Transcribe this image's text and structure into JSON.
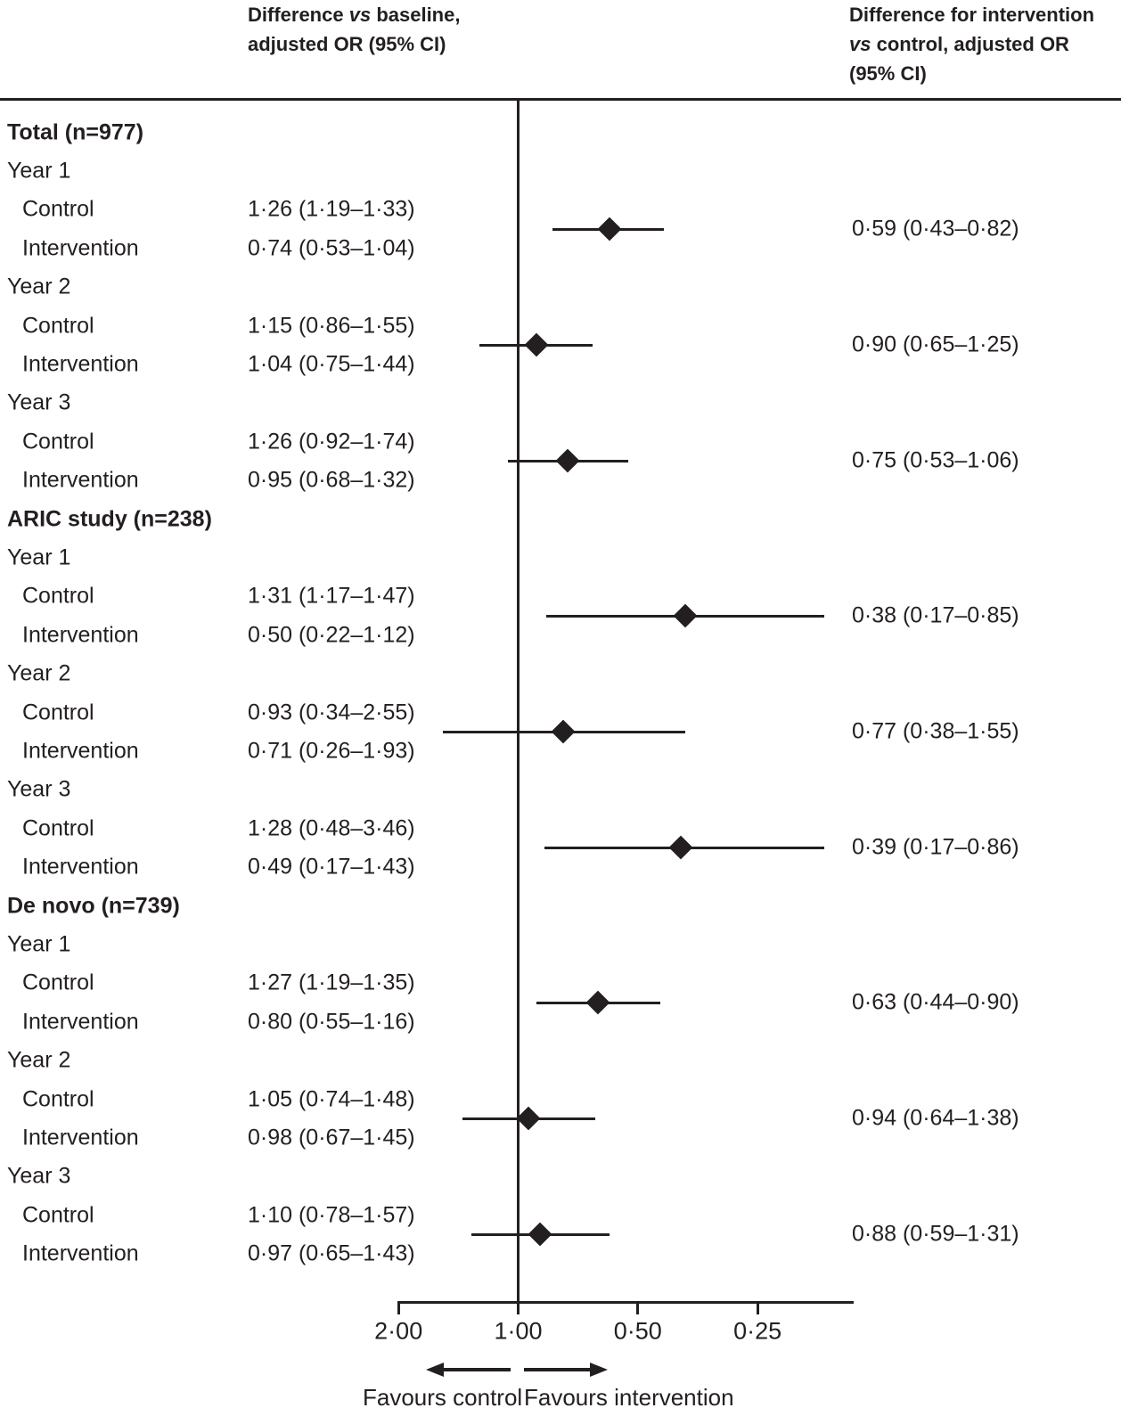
{
  "figure_ink_color": "#231f20",
  "headers": {
    "baseline_col": {
      "line1_pre": "Difference ",
      "vs_italic": "vs",
      "line1_post": " baseline,",
      "line2": "adjusted OR (95% CI)"
    },
    "intervention_col": {
      "line1": "Difference for intervention",
      "vs_italic": "vs",
      "line2_post": " control, adjusted OR",
      "line3": "(95% CI)"
    }
  },
  "chart_data": {
    "type": "forest",
    "x_axis": {
      "scale": "log2",
      "direction": "reversed_higher_on_left",
      "tick_values": [
        2.0,
        1.0,
        0.5,
        0.25
      ],
      "tick_labels": [
        "2·00",
        "1·00",
        "0·50",
        "0·25"
      ],
      "reference_value": 1.0,
      "displayed_range_left_to_right": [
        2.0,
        0.14
      ],
      "grid": false
    },
    "footer": {
      "favours_left": "Favours control",
      "favours_right": "Favours intervention"
    },
    "groups": [
      {
        "label": "Total (n=977)",
        "years": [
          {
            "label": "Year 1",
            "arms": [
              {
                "label": "Control",
                "text": "1·26 (1·19–1·33)",
                "or": 1.26,
                "lo": 1.19,
                "hi": 1.33
              },
              {
                "label": "Intervention",
                "text": "0·74 (0·53–1·04)",
                "or": 0.74,
                "lo": 0.53,
                "hi": 1.04
              }
            ],
            "diff": {
              "text": "0·59 (0·43–0·82)",
              "or": 0.59,
              "lo": 0.43,
              "hi": 0.82
            }
          },
          {
            "label": "Year 2",
            "arms": [
              {
                "label": "Control",
                "text": "1·15 (0·86–1·55)",
                "or": 1.15,
                "lo": 0.86,
                "hi": 1.55
              },
              {
                "label": "Intervention",
                "text": "1·04 (0·75–1·44)",
                "or": 1.04,
                "lo": 0.75,
                "hi": 1.44
              }
            ],
            "diff": {
              "text": "0·90 (0·65–1·25)",
              "or": 0.9,
              "lo": 0.65,
              "hi": 1.25
            }
          },
          {
            "label": "Year 3",
            "arms": [
              {
                "label": "Control",
                "text": "1·26 (0·92–1·74)",
                "or": 1.26,
                "lo": 0.92,
                "hi": 1.74
              },
              {
                "label": "Intervention",
                "text": "0·95 (0·68–1·32)",
                "or": 0.95,
                "lo": 0.68,
                "hi": 1.32
              }
            ],
            "diff": {
              "text": "0·75 (0·53–1·06)",
              "or": 0.75,
              "lo": 0.53,
              "hi": 1.06
            }
          }
        ]
      },
      {
        "label": "ARIC study (n=238)",
        "years": [
          {
            "label": "Year 1",
            "arms": [
              {
                "label": "Control",
                "text": "1·31 (1·17–1·47)",
                "or": 1.31,
                "lo": 1.17,
                "hi": 1.47
              },
              {
                "label": "Intervention",
                "text": "0·50 (0·22–1·12)",
                "or": 0.5,
                "lo": 0.22,
                "hi": 1.12
              }
            ],
            "diff": {
              "text": "0·38 (0·17–0·85)",
              "or": 0.38,
              "lo": 0.17,
              "hi": 0.85
            }
          },
          {
            "label": "Year 2",
            "arms": [
              {
                "label": "Control",
                "text": "0·93 (0·34–2·55)",
                "or": 0.93,
                "lo": 0.34,
                "hi": 2.55
              },
              {
                "label": "Intervention",
                "text": "0·71 (0·26–1·93)",
                "or": 0.71,
                "lo": 0.26,
                "hi": 1.93
              }
            ],
            "diff": {
              "text": "0·77 (0·38–1·55)",
              "or": 0.77,
              "lo": 0.38,
              "hi": 1.55
            }
          },
          {
            "label": "Year 3",
            "arms": [
              {
                "label": "Control",
                "text": "1·28 (0·48–3·46)",
                "or": 1.28,
                "lo": 0.48,
                "hi": 3.46
              },
              {
                "label": "Intervention",
                "text": "0·49 (0·17–1·43)",
                "or": 0.49,
                "lo": 0.17,
                "hi": 1.43
              }
            ],
            "diff": {
              "text": "0·39 (0·17–0·86)",
              "or": 0.39,
              "lo": 0.17,
              "hi": 0.86
            }
          }
        ]
      },
      {
        "label": "De novo (n=739)",
        "years": [
          {
            "label": "Year 1",
            "arms": [
              {
                "label": "Control",
                "text": "1·27 (1·19–1·35)",
                "or": 1.27,
                "lo": 1.19,
                "hi": 1.35
              },
              {
                "label": "Intervention",
                "text": "0·80 (0·55–1·16)",
                "or": 0.8,
                "lo": 0.55,
                "hi": 1.16
              }
            ],
            "diff": {
              "text": "0·63 (0·44–0·90)",
              "or": 0.63,
              "lo": 0.44,
              "hi": 0.9
            }
          },
          {
            "label": "Year 2",
            "arms": [
              {
                "label": "Control",
                "text": "1·05 (0·74–1·48)",
                "or": 1.05,
                "lo": 0.74,
                "hi": 1.48
              },
              {
                "label": "Intervention",
                "text": "0·98 (0·67–1·45)",
                "or": 0.98,
                "lo": 0.67,
                "hi": 1.45
              }
            ],
            "diff": {
              "text": "0·94 (0·64–1·38)",
              "or": 0.94,
              "lo": 0.64,
              "hi": 1.38
            }
          },
          {
            "label": "Year 3",
            "arms": [
              {
                "label": "Control",
                "text": "1·10 (0·78–1·57)",
                "or": 1.1,
                "lo": 0.78,
                "hi": 1.57
              },
              {
                "label": "Intervention",
                "text": "0·97 (0·65–1·43)",
                "or": 0.97,
                "lo": 0.65,
                "hi": 1.43
              }
            ],
            "diff": {
              "text": "0·88 (0·59–1·31)",
              "or": 0.88,
              "lo": 0.59,
              "hi": 1.31
            }
          }
        ]
      }
    ]
  }
}
